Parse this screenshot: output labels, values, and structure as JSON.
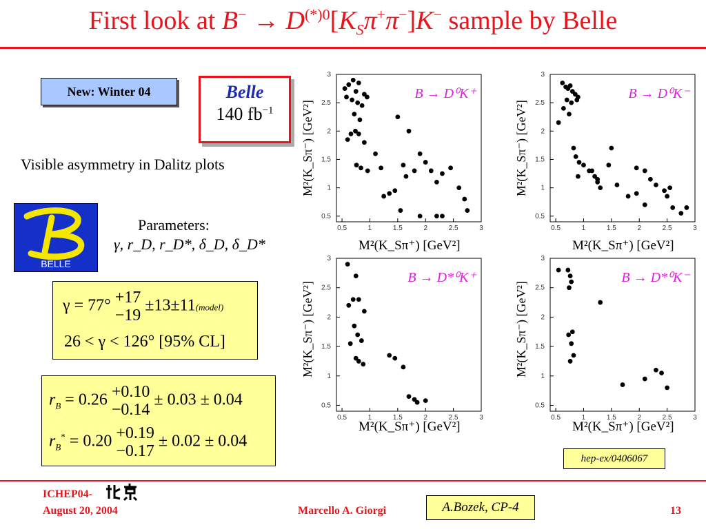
{
  "title": {
    "prefix": "First look at ",
    "b": "B",
    "b_sup": "−",
    "arrow": " → ",
    "d": "D",
    "d_sup": "(*)0",
    "bracket_open": "[",
    "k": "K",
    "k_sub": "S",
    "pi1": "π",
    "pi1_sup": "+",
    "pi2": "π",
    "pi2_sup": "−",
    "bracket_close": "]",
    "k2": "K",
    "k2_sup": "−",
    "suffix": " sample by Belle"
  },
  "badge_winter": "New: Winter 04",
  "belle_box": {
    "name": "Belle",
    "lumi": "140 fb",
    "lumi_sup": "−1"
  },
  "asymmetry_text": "Visible asymmetry in Dalitz plots",
  "logo_text": "BELLE",
  "parameters": {
    "heading": "Parameters:",
    "list": "γ, r_D, r_D*, δ_D, δ_D*"
  },
  "gamma_box": {
    "line1_lhs": "γ = 77°",
    "line1_up": "+17",
    "line1_down": "−19",
    "line1_err": "±13±11",
    "line1_tag": "(model)",
    "line2": "26 < γ < 126°  [95% CL]"
  },
  "rb_box": {
    "rb_lhs": "r",
    "rb_sub": "B",
    "rb_val": " = 0.26",
    "rb_up": "+0.10",
    "rb_down": "−0.14",
    "rb_err": "± 0.03 ± 0.04",
    "rbs_lhs": "r",
    "rbs_sub": "B",
    "rbs_sup": "*",
    "rbs_val": " = 0.20",
    "rbs_up": "+0.19",
    "rbs_down": "−0.17",
    "rbs_err": "± 0.02 ± 0.04"
  },
  "plots": {
    "ylabel": "M²(K_Sπ⁻) [GeV²]",
    "xlabel": "M²(K_Sπ⁺) [GeV²]",
    "x_ticks": [
      "0.5",
      "1",
      "1.5",
      "2",
      "2.5",
      "3"
    ],
    "y_ticks": [
      "0.5",
      "1",
      "1.5",
      "2",
      "2.5",
      "3"
    ],
    "panels": [
      {
        "label": "B → D⁰K⁺"
      },
      {
        "label": "B → D⁰K⁻"
      },
      {
        "label": "B → D*⁰K⁺"
      },
      {
        "label": "B → D*⁰K⁻"
      }
    ]
  },
  "chart_data": [
    {
      "type": "scatter",
      "title": "B → D0K+",
      "xlabel": "M2(KSπ+) [GeV2]",
      "ylabel": "M2(KSπ−) [GeV2]",
      "xlim": [
        0.4,
        3.0
      ],
      "ylim": [
        0.4,
        3.0
      ],
      "x": [
        0.55,
        0.62,
        0.7,
        0.8,
        0.75,
        0.9,
        0.58,
        0.68,
        0.78,
        0.86,
        0.95,
        0.72,
        0.82,
        0.6,
        0.66,
        0.74,
        0.8,
        0.9,
        0.76,
        0.84,
        0.96,
        1.1,
        1.2,
        1.25,
        1.35,
        1.5,
        1.7,
        1.6,
        1.65,
        1.8,
        1.9,
        2.0,
        2.1,
        2.2,
        2.3,
        2.45,
        2.6,
        2.7,
        2.75,
        1.45,
        1.55,
        2.2,
        2.3,
        1.9
      ],
      "y": [
        2.75,
        2.82,
        2.9,
        2.85,
        2.7,
        2.65,
        2.6,
        2.55,
        2.5,
        2.45,
        2.6,
        2.3,
        2.2,
        1.85,
        1.95,
        2.0,
        1.95,
        1.8,
        1.4,
        1.35,
        1.3,
        1.6,
        1.35,
        0.85,
        0.9,
        2.25,
        2.0,
        1.4,
        1.2,
        1.3,
        1.6,
        1.45,
        1.3,
        1.1,
        1.25,
        1.35,
        1.0,
        0.8,
        0.6,
        0.95,
        0.6,
        0.5,
        0.5,
        0.5
      ]
    },
    {
      "type": "scatter",
      "title": "B → D0K−",
      "xlabel": "M2(KSπ+) [GeV2]",
      "ylabel": "M2(KSπ−) [GeV2]",
      "xlim": [
        0.4,
        3.0
      ],
      "ylim": [
        0.4,
        3.0
      ],
      "x": [
        0.62,
        0.68,
        0.72,
        0.76,
        0.8,
        0.85,
        0.7,
        0.78,
        0.9,
        0.64,
        0.74,
        0.88,
        0.55,
        0.82,
        0.86,
        0.92,
        1.0,
        1.1,
        1.2,
        1.25,
        1.3,
        1.45,
        1.6,
        1.8,
        1.95,
        2.1,
        2.2,
        2.3,
        2.45,
        2.5,
        2.55,
        2.6,
        2.75,
        2.85,
        0.9,
        1.15,
        1.25,
        1.5,
        1.95,
        2.1
      ],
      "y": [
        2.85,
        2.78,
        2.75,
        2.8,
        2.7,
        2.65,
        2.55,
        2.5,
        2.6,
        2.4,
        2.3,
        2.55,
        2.15,
        1.7,
        1.55,
        1.45,
        1.4,
        1.3,
        1.2,
        1.1,
        1.0,
        1.4,
        1.05,
        0.85,
        0.9,
        1.3,
        1.15,
        1.05,
        0.95,
        0.85,
        1.0,
        0.65,
        0.55,
        0.65,
        1.2,
        1.3,
        1.15,
        1.7,
        1.35,
        0.7
      ]
    },
    {
      "type": "scatter",
      "title": "B → D*0K+",
      "xlabel": "M2(KSπ+) [GeV2]",
      "ylabel": "M2(KSπ−) [GeV2]",
      "xlim": [
        0.4,
        3.0
      ],
      "ylim": [
        0.4,
        3.0
      ],
      "x": [
        0.6,
        0.62,
        0.7,
        0.75,
        0.8,
        0.9,
        0.72,
        0.78,
        0.85,
        0.65,
        0.75,
        0.8,
        0.88,
        1.35,
        1.45,
        1.6,
        1.7,
        1.8,
        1.85,
        2.0
      ],
      "y": [
        2.9,
        2.2,
        2.3,
        2.7,
        2.3,
        2.1,
        1.85,
        1.7,
        1.6,
        1.55,
        1.3,
        1.25,
        1.2,
        1.35,
        1.3,
        1.15,
        0.65,
        0.6,
        0.55,
        0.58
      ]
    },
    {
      "type": "scatter",
      "title": "B → D*0K−",
      "xlabel": "M2(KSπ+) [GeV2]",
      "ylabel": "M2(KSπ−) [GeV2]",
      "xlim": [
        0.4,
        3.0
      ],
      "ylim": [
        0.4,
        3.0
      ],
      "x": [
        0.55,
        0.72,
        0.76,
        0.78,
        0.74,
        0.8,
        0.73,
        0.78,
        0.82,
        0.76,
        1.3,
        1.7,
        2.1,
        2.3,
        2.4,
        2.5
      ],
      "y": [
        2.8,
        2.8,
        2.7,
        2.6,
        2.5,
        1.75,
        1.7,
        1.55,
        1.35,
        1.25,
        2.25,
        0.85,
        0.95,
        1.1,
        1.05,
        0.8
      ]
    }
  ],
  "hep_ref": "hep-ex/0406067",
  "footer": {
    "conf": "ICHEP04-",
    "date": "August 20, 2004",
    "author": "Marcello A. Giorgi",
    "credit": "A.Bozek, CP-4",
    "page": "13"
  }
}
